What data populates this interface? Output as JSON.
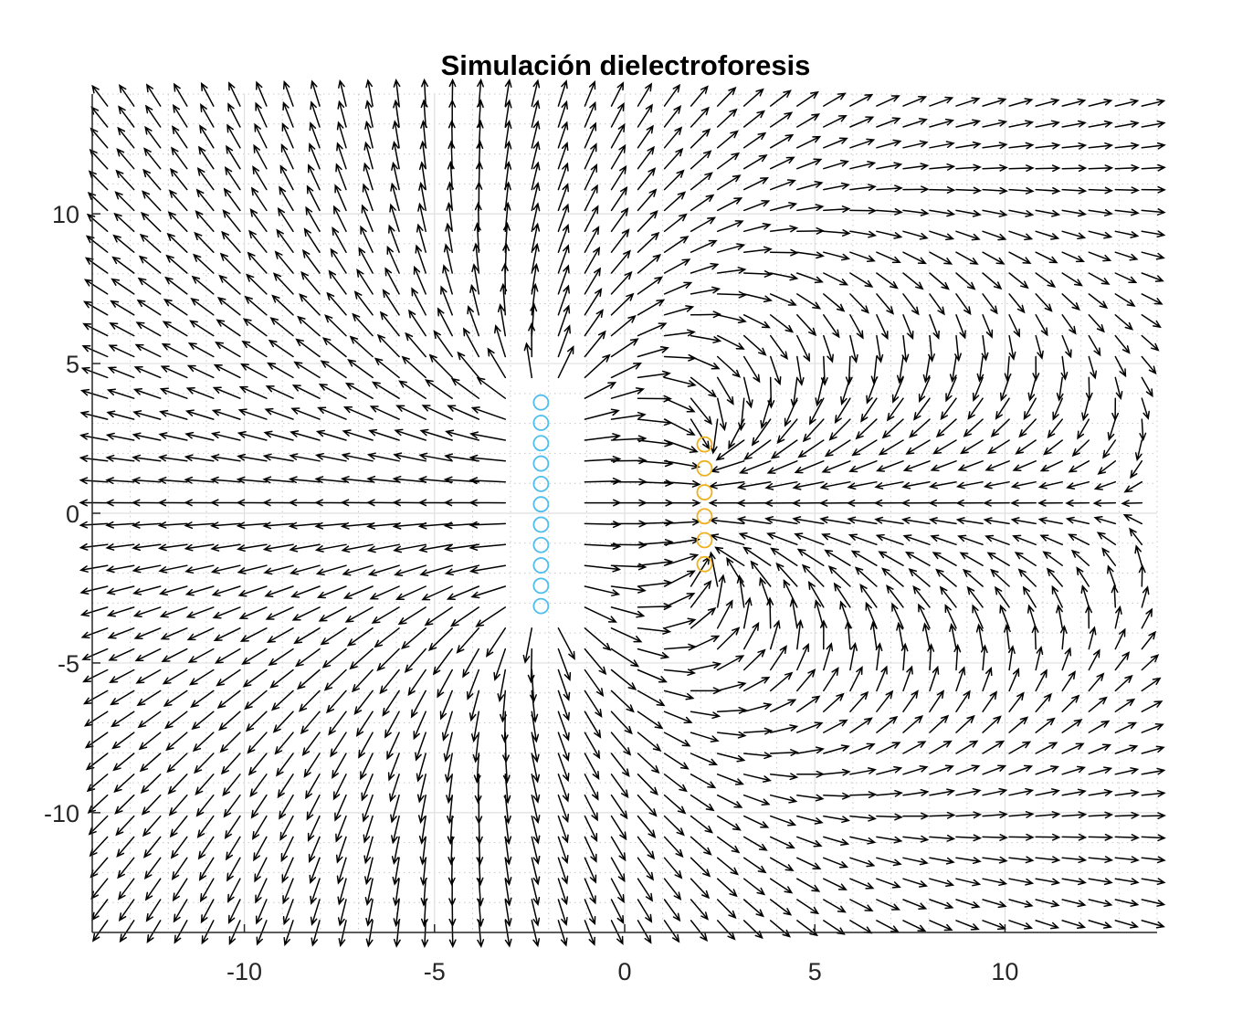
{
  "chart_data": {
    "type": "quiver",
    "title": "Simulación dielectroforesis",
    "xlabel": "",
    "ylabel": "",
    "xlim": [
      -14,
      14
    ],
    "ylim": [
      -14,
      14
    ],
    "xticks": [
      -10,
      -5,
      0,
      5,
      10
    ],
    "xtick_labels": [
      "-10",
      "-5",
      "0",
      "5",
      "10"
    ],
    "yticks": [
      10,
      5,
      0,
      -5,
      -10
    ],
    "ytick_labels": [
      "10",
      "5",
      "0",
      "-5",
      "-10"
    ],
    "grid": true,
    "minor_grid": true,
    "legend": "none",
    "quiver_grid": {
      "min": -13.6,
      "max": 13.6,
      "count": 40
    },
    "field_model": {
      "source_rod": {
        "x": -2.2,
        "y_min": -3.1,
        "y_max": 3.7,
        "charges": 11,
        "sign": 1
      },
      "sink_rod": {
        "x": 2.1,
        "y_min": -1.7,
        "y_max": 2.3,
        "charges": 6,
        "sign": -1
      },
      "exclusion_radius": 0.6
    },
    "series": [
      {
        "marker": "circle",
        "color": "#4DBEEE",
        "x": [
          -2.2,
          -2.2,
          -2.2,
          -2.2,
          -2.2,
          -2.2,
          -2.2,
          -2.2,
          -2.2,
          -2.2,
          -2.2
        ],
        "y": [
          3.7,
          3.02,
          2.34,
          1.66,
          0.98,
          0.3,
          -0.38,
          -1.06,
          -1.74,
          -2.42,
          -3.1
        ]
      },
      {
        "marker": "circle",
        "color": "#EDB120",
        "x": [
          2.1,
          2.1,
          2.1,
          2.1,
          2.1,
          2.1
        ],
        "y": [
          2.3,
          1.5,
          0.7,
          -0.1,
          -0.9,
          -1.7
        ]
      }
    ],
    "colors": {
      "arrows": "#000000",
      "axes": "#262626",
      "grid_major": "#dfdfdf",
      "grid_minor": "#c8c8c8"
    }
  }
}
